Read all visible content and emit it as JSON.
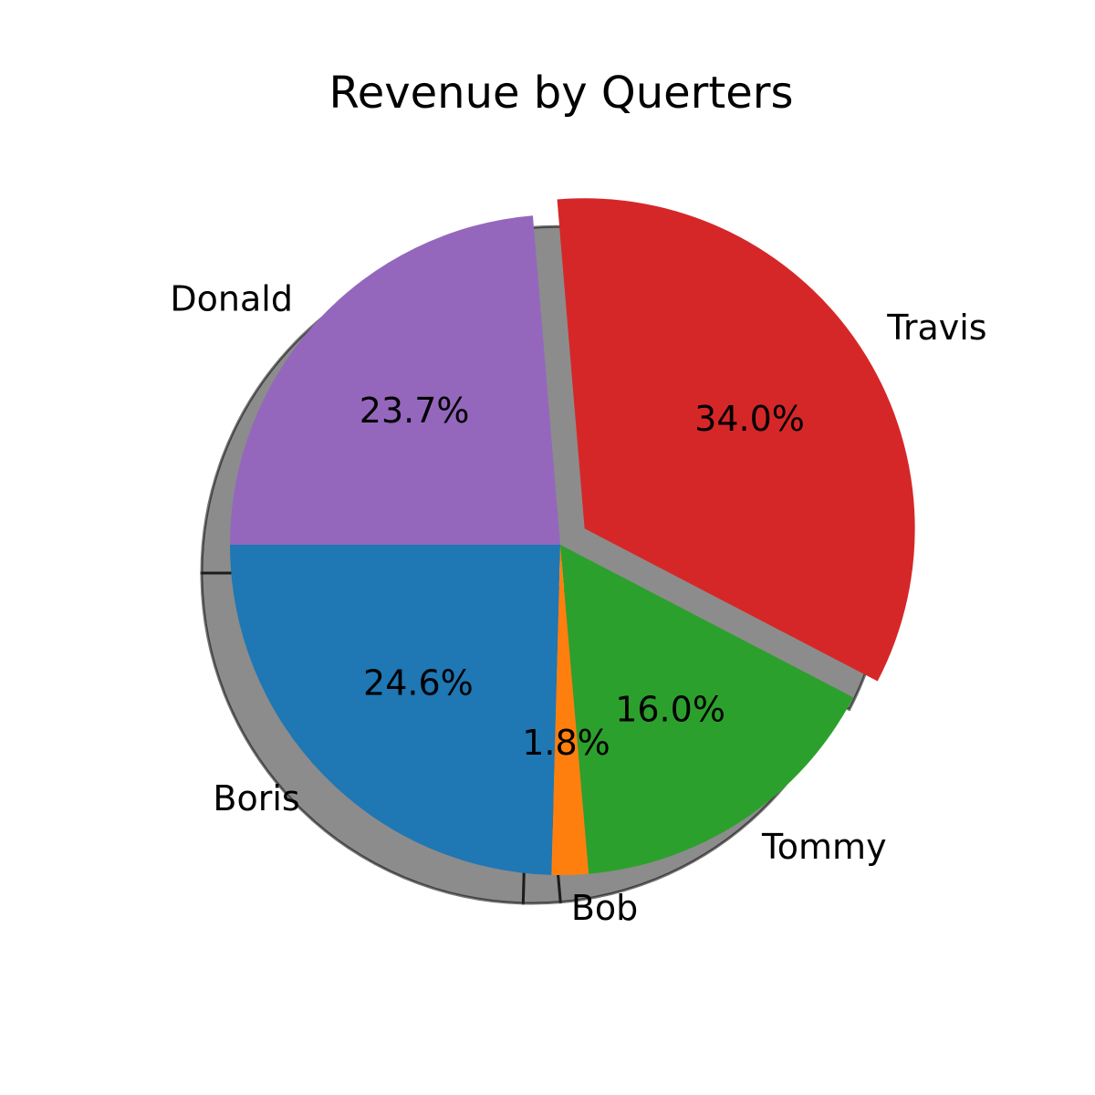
{
  "chart_data": {
    "type": "pie",
    "title": "Revenue by Querters",
    "slices": [
      {
        "label": "Boris",
        "value": 24.6,
        "pct_label": "24.6%",
        "color": "#1f77b4",
        "explode": 0
      },
      {
        "label": "Bob",
        "value": 1.8,
        "pct_label": "1.8%",
        "color": "#ff7f0e",
        "explode": 0
      },
      {
        "label": "Tommy",
        "value": 16.0,
        "pct_label": "16.0%",
        "color": "#2ca02c",
        "explode": 0
      },
      {
        "label": "Travis",
        "value": 34.0,
        "pct_label": "34.0%",
        "color": "#d62728",
        "explode": 1
      },
      {
        "label": "Donald",
        "value": 23.7,
        "pct_label": "23.7%",
        "color": "#9467bd",
        "explode": 0
      }
    ],
    "start_angle_deg": 180,
    "direction": "counterclockwise",
    "shadow": true
  }
}
